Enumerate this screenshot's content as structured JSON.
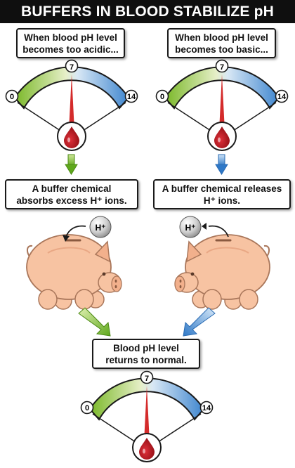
{
  "title": "BUFFERS IN BLOOD STABILIZE pH",
  "acidic_box": {
    "line1": "When blood pH level",
    "line2": "becomes too acidic..."
  },
  "basic_box": {
    "line1": "When blood pH level",
    "line2": "becomes too basic..."
  },
  "absorb_box": {
    "line1": "A buffer chemical",
    "line2": "absorbs excess H⁺ ions."
  },
  "release_box": {
    "line1": "A buffer chemical releases",
    "line2": "H⁺ ions."
  },
  "normal_box": {
    "line1": "Blood pH level",
    "line2": "returns to normal."
  },
  "gauge": {
    "min": "0",
    "mid": "7",
    "max": "14"
  },
  "hydrogen_ion": "H⁺",
  "colors": {
    "acid_green": "#7bbf2a",
    "base_blue": "#4a8fd6",
    "needle_red": "#d42b2b",
    "blood_red": "#b3121a",
    "pig_pink": "#f7c3a2"
  }
}
